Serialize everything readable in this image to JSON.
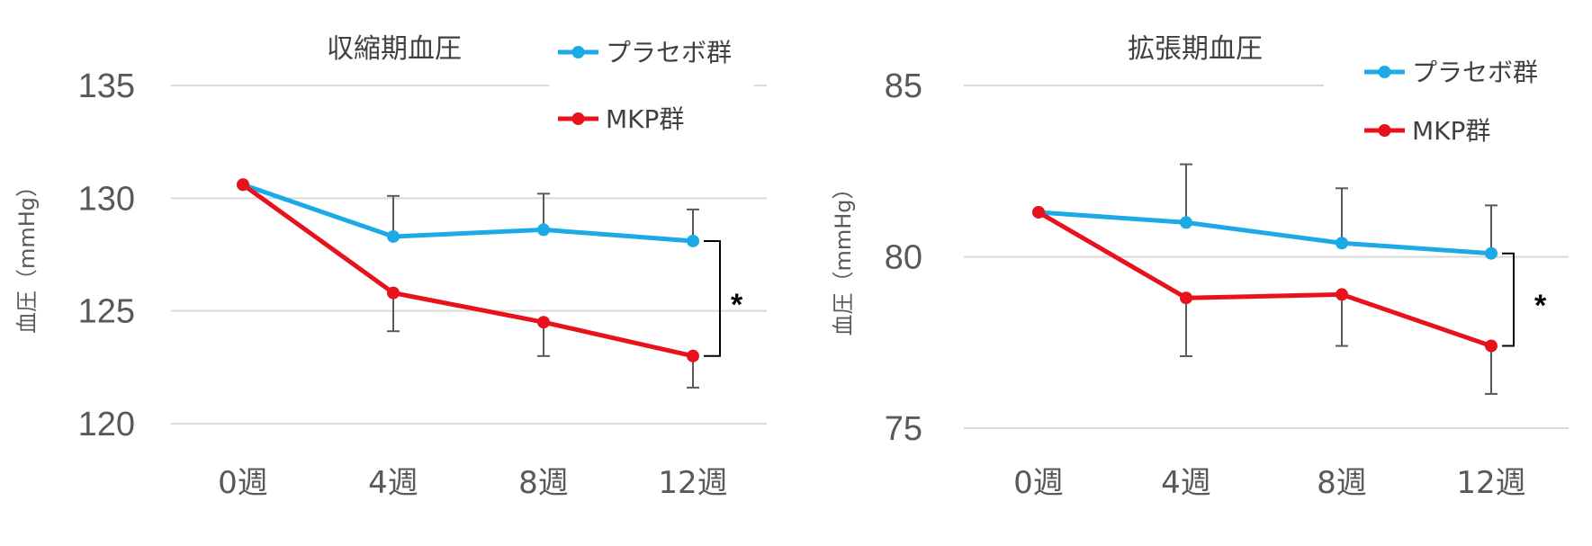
{
  "colors": {
    "placebo": "#1CAAE6",
    "mkp": "#E8121C",
    "grid": "#D9D9D9",
    "error": "#595959"
  },
  "chart_data": [
    {
      "type": "line",
      "title": "収縮期血圧",
      "ylabel": "血圧（mmHg）",
      "xlabel": "",
      "categories": [
        "0週",
        "4週",
        "8週",
        "12週"
      ],
      "ylim": [
        120,
        135
      ],
      "yticks": [
        "120",
        "125",
        "130",
        "135"
      ],
      "grid": true,
      "legend_position": "top-right",
      "series": [
        {
          "name": "プラセボ群",
          "color_key": "placebo",
          "values": [
            130.6,
            128.3,
            128.6,
            128.1
          ],
          "error": [
            0,
            1.8,
            1.6,
            1.4
          ]
        },
        {
          "name": "MKP群",
          "color_key": "mkp",
          "values": [
            130.6,
            125.8,
            124.5,
            123.0
          ],
          "error": [
            0,
            1.7,
            1.5,
            1.4
          ]
        }
      ],
      "significance": "*"
    },
    {
      "type": "line",
      "title": "拡張期血圧",
      "ylabel": "血圧（mmHg）",
      "xlabel": "",
      "categories": [
        "0週",
        "4週",
        "8週",
        "12週"
      ],
      "ylim": [
        75,
        85
      ],
      "yticks": [
        "75",
        "80",
        "85"
      ],
      "grid": true,
      "legend_position": "top-right",
      "series": [
        {
          "name": "プラセボ群",
          "color_key": "placebo",
          "values": [
            81.3,
            81.0,
            80.4,
            80.1
          ],
          "error": [
            0,
            1.7,
            1.6,
            1.4
          ]
        },
        {
          "name": "MKP群",
          "color_key": "mkp",
          "values": [
            81.3,
            78.8,
            78.9,
            77.4
          ],
          "error": [
            0,
            1.7,
            1.5,
            1.4
          ]
        }
      ],
      "significance": "*"
    }
  ]
}
